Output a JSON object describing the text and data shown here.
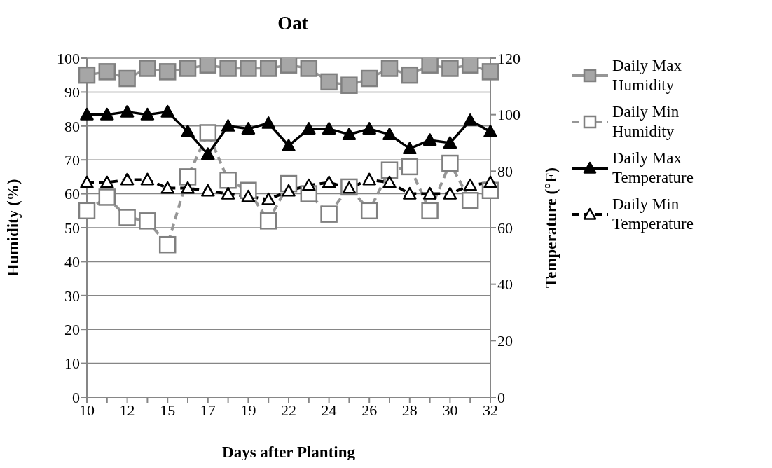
{
  "chart_data": {
    "type": "line",
    "title": "Oat",
    "xlabel": "Days after Planting",
    "ylabel": "Humidity (%)",
    "y2label": "Temperature (°F)",
    "categories": [
      "10",
      null,
      "12",
      null,
      "15",
      null,
      "17",
      null,
      "19",
      null,
      "22",
      null,
      "24",
      null,
      "26",
      null,
      "28",
      null,
      "30",
      null,
      "32"
    ],
    "series": [
      {
        "name": "Daily Max Humidity",
        "color": "#969696",
        "marker": "square",
        "line_style": "solid",
        "values": [
          95,
          96,
          94,
          97,
          96,
          97,
          98,
          97,
          97,
          97,
          98,
          97,
          93,
          92,
          94,
          97,
          95,
          98,
          97,
          98,
          96
        ]
      },
      {
        "name": "Daily Min Humidity",
        "color": "#969696",
        "marker": "square",
        "line_style": "dashed",
        "values": [
          55,
          59,
          53,
          52,
          45,
          65,
          78,
          64,
          61,
          52,
          63,
          60,
          54,
          62,
          55,
          67,
          68,
          55,
          69,
          58,
          61
        ]
      },
      {
        "name": "Daily Max Temperature",
        "color": "#000000",
        "marker": "triangle",
        "line_style": "solid",
        "axis": "y2",
        "values": [
          100,
          100,
          101,
          100,
          101,
          94,
          86,
          96,
          95,
          97,
          89,
          95,
          95,
          93,
          95,
          93,
          88,
          91,
          90,
          98,
          94
        ]
      },
      {
        "name": "Daily Min Temperature",
        "color": "#000000",
        "marker": "triangle",
        "line_style": "dashed",
        "axis": "y2",
        "values": [
          76,
          76,
          77,
          77,
          74,
          74,
          73,
          72,
          71,
          70,
          73,
          75,
          76,
          74,
          77,
          76,
          72,
          72,
          72,
          75,
          76
        ]
      }
    ],
    "ylim": [
      0,
      100
    ],
    "yticks": [
      0,
      10,
      20,
      30,
      40,
      50,
      60,
      70,
      80,
      90,
      100
    ],
    "y2lim": [
      0,
      120
    ],
    "y2ticks": [
      0,
      20,
      40,
      60,
      80,
      100,
      120
    ],
    "grid": "y",
    "legend": "right"
  }
}
